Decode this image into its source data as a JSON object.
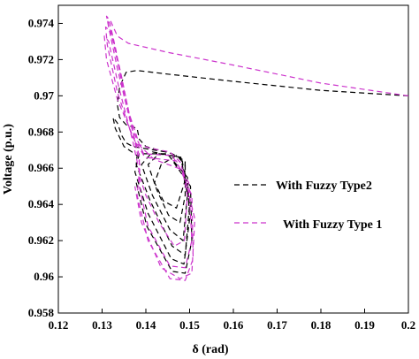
{
  "chart_data": {
    "type": "line",
    "title": "",
    "xlabel": "δ (rad)",
    "ylabel": "Voltage (p.u.)",
    "xlim": [
      0.12,
      0.2
    ],
    "ylim": [
      0.958,
      0.975
    ],
    "xticks": [
      "0.12",
      "0.13",
      "0.14",
      "0.15",
      "0.16",
      "0.17",
      "0.18",
      "0.19",
      "0.2"
    ],
    "yticks": [
      "0.958",
      "0.96",
      "0.962",
      "0.964",
      "0.966",
      "0.968",
      "0.97",
      "0.972",
      "0.974"
    ],
    "grid": false,
    "legend_position": "right",
    "series": [
      {
        "name": "With Fuzzy Type2",
        "color": "#000000",
        "dash": "dashed",
        "points": [
          [
            0.2,
            0.97
          ],
          [
            0.18,
            0.9703
          ],
          [
            0.16,
            0.9708
          ],
          [
            0.145,
            0.9712
          ],
          [
            0.138,
            0.9714
          ],
          [
            0.1355,
            0.9713
          ],
          [
            0.134,
            0.9705
          ],
          [
            0.1335,
            0.9695
          ],
          [
            0.134,
            0.9688
          ],
          [
            0.1355,
            0.9684
          ],
          [
            0.138,
            0.9682
          ],
          [
            0.1385,
            0.9676
          ],
          [
            0.14,
            0.9672
          ],
          [
            0.146,
            0.9668
          ],
          [
            0.149,
            0.9664
          ],
          [
            0.1488,
            0.9652
          ],
          [
            0.147,
            0.9638
          ],
          [
            0.144,
            0.9642
          ],
          [
            0.142,
            0.9652
          ],
          [
            0.1435,
            0.9662
          ],
          [
            0.147,
            0.9667
          ],
          [
            0.149,
            0.9662
          ],
          [
            0.149,
            0.9645
          ],
          [
            0.1478,
            0.963
          ],
          [
            0.1452,
            0.9634
          ],
          [
            0.1425,
            0.9648
          ],
          [
            0.1405,
            0.9662
          ],
          [
            0.143,
            0.9668
          ],
          [
            0.1482,
            0.9666
          ],
          [
            0.1495,
            0.9645
          ],
          [
            0.1485,
            0.962
          ],
          [
            0.1455,
            0.9626
          ],
          [
            0.1415,
            0.9645
          ],
          [
            0.139,
            0.9662
          ],
          [
            0.1415,
            0.9669
          ],
          [
            0.148,
            0.9666
          ],
          [
            0.15,
            0.964
          ],
          [
            0.149,
            0.9612
          ],
          [
            0.146,
            0.9617
          ],
          [
            0.141,
            0.9642
          ],
          [
            0.1378,
            0.9662
          ],
          [
            0.138,
            0.9667
          ],
          [
            0.135,
            0.9672
          ],
          [
            0.133,
            0.9682
          ],
          [
            0.1325,
            0.9688
          ],
          [
            0.1335,
            0.9685
          ],
          [
            0.1345,
            0.9678
          ],
          [
            0.1355,
            0.9674
          ],
          [
            0.137,
            0.9672
          ],
          [
            0.1445,
            0.9669
          ],
          [
            0.1495,
            0.9655
          ],
          [
            0.15,
            0.9632
          ],
          [
            0.1487,
            0.9607
          ],
          [
            0.1458,
            0.961
          ],
          [
            0.1405,
            0.9635
          ],
          [
            0.1375,
            0.9658
          ],
          [
            0.1385,
            0.9668
          ],
          [
            0.145,
            0.9668
          ],
          [
            0.1502,
            0.965
          ],
          [
            0.1505,
            0.962
          ],
          [
            0.149,
            0.9602
          ],
          [
            0.146,
            0.9603
          ],
          [
            0.1402,
            0.9628
          ],
          [
            0.1378,
            0.9652
          ]
        ]
      },
      {
        "name": "With Fuzzy Type 1",
        "color": "#cc33cc",
        "dash": "dashed",
        "points": [
          [
            0.2,
            0.97
          ],
          [
            0.18,
            0.9707
          ],
          [
            0.16,
            0.9717
          ],
          [
            0.145,
            0.9724
          ],
          [
            0.136,
            0.9729
          ],
          [
            0.1335,
            0.9733
          ],
          [
            0.132,
            0.9741
          ],
          [
            0.131,
            0.9744
          ],
          [
            0.1315,
            0.9738
          ],
          [
            0.1335,
            0.9715
          ],
          [
            0.1355,
            0.9695
          ],
          [
            0.1372,
            0.9683
          ],
          [
            0.1385,
            0.9673
          ],
          [
            0.141,
            0.9671
          ],
          [
            0.1455,
            0.9669
          ],
          [
            0.148,
            0.9663
          ],
          [
            0.1495,
            0.9645
          ],
          [
            0.1488,
            0.962
          ],
          [
            0.1465,
            0.9617
          ],
          [
            0.143,
            0.963
          ],
          [
            0.14,
            0.9645
          ],
          [
            0.1385,
            0.9656
          ],
          [
            0.1385,
            0.9667
          ],
          [
            0.137,
            0.968
          ],
          [
            0.135,
            0.97
          ],
          [
            0.1332,
            0.9725
          ],
          [
            0.1318,
            0.974
          ],
          [
            0.1312,
            0.9742
          ],
          [
            0.1325,
            0.973
          ],
          [
            0.135,
            0.9703
          ],
          [
            0.1372,
            0.968
          ],
          [
            0.1395,
            0.9668
          ],
          [
            0.146,
            0.9667
          ],
          [
            0.1498,
            0.9652
          ],
          [
            0.1505,
            0.962
          ],
          [
            0.149,
            0.9605
          ],
          [
            0.1455,
            0.9606
          ],
          [
            0.1405,
            0.9628
          ],
          [
            0.1385,
            0.965
          ],
          [
            0.1386,
            0.9662
          ],
          [
            0.1372,
            0.9678
          ],
          [
            0.1345,
            0.971
          ],
          [
            0.1322,
            0.9735
          ],
          [
            0.1308,
            0.9738
          ],
          [
            0.1312,
            0.9728
          ],
          [
            0.1335,
            0.9702
          ],
          [
            0.1368,
            0.9678
          ],
          [
            0.1398,
            0.9666
          ],
          [
            0.147,
            0.9664
          ],
          [
            0.1505,
            0.9645
          ],
          [
            0.1508,
            0.961
          ],
          [
            0.149,
            0.9598
          ],
          [
            0.1455,
            0.9599
          ],
          [
            0.1405,
            0.962
          ],
          [
            0.138,
            0.9645
          ],
          [
            0.1385,
            0.9658
          ],
          [
            0.137,
            0.9675
          ],
          [
            0.1338,
            0.9705
          ],
          [
            0.1315,
            0.973
          ],
          [
            0.1305,
            0.9733
          ],
          [
            0.131,
            0.972
          ],
          [
            0.1335,
            0.9698
          ],
          [
            0.1375,
            0.9675
          ],
          [
            0.1418,
            0.9665
          ],
          [
            0.1485,
            0.9659
          ],
          [
            0.1512,
            0.9632
          ],
          [
            0.1505,
            0.9602
          ],
          [
            0.1478,
            0.9599
          ],
          [
            0.1435,
            0.9605
          ],
          [
            0.139,
            0.963
          ],
          [
            0.1375,
            0.965
          ]
        ]
      }
    ]
  }
}
